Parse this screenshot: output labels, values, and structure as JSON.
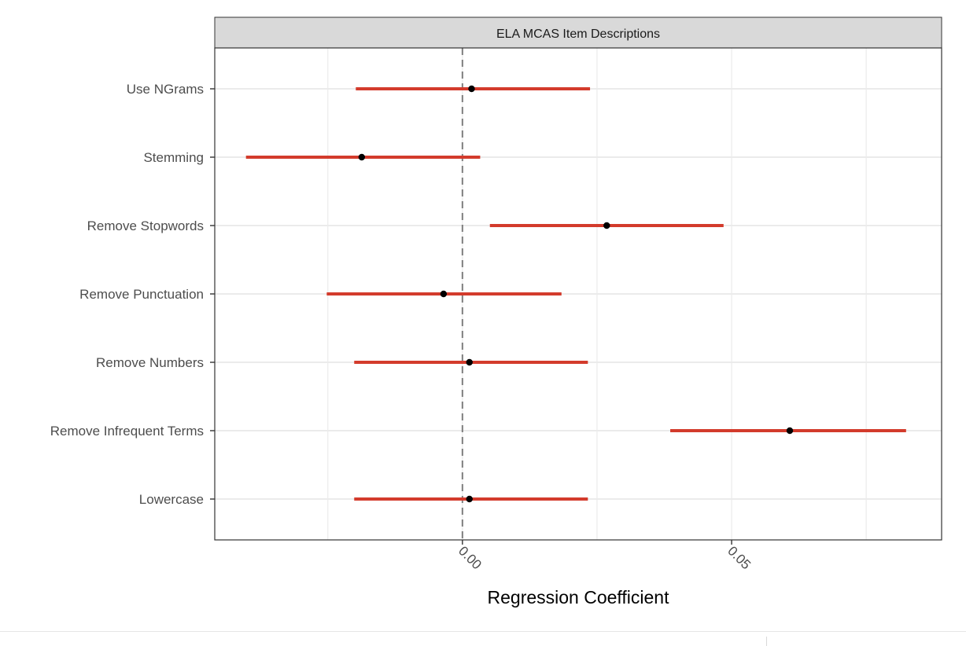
{
  "chart_data": {
    "type": "forest",
    "panel_title": "ELA MCAS Item Descriptions",
    "xlabel": "Regression Coefficient",
    "ylabel": "",
    "xlim": [
      -0.046,
      0.089
    ],
    "x_ticks": [
      {
        "value": 0.0,
        "label": "0.00"
      },
      {
        "value": 0.05,
        "label": "0.05"
      }
    ],
    "reference_line": 0.0,
    "grid": true,
    "colors": {
      "interval": "#d33b2c",
      "point": "#000000",
      "strip": "#d9d9d9",
      "grid": "#ebebeb",
      "reference": "#7f7f7f"
    },
    "rows": [
      {
        "label": "Use NGrams",
        "estimate": 0.0017,
        "lower": -0.0198,
        "upper": 0.0237
      },
      {
        "label": "Stemming",
        "estimate": -0.0187,
        "lower": -0.0402,
        "upper": 0.0033
      },
      {
        "label": "Remove Stopwords",
        "estimate": 0.0268,
        "lower": 0.0051,
        "upper": 0.0485
      },
      {
        "label": "Remove Punctuation",
        "estimate": -0.0035,
        "lower": -0.0252,
        "upper": 0.0184
      },
      {
        "label": "Remove Numbers",
        "estimate": 0.0013,
        "lower": -0.0201,
        "upper": 0.0233
      },
      {
        "label": "Remove Infrequent Terms",
        "estimate": 0.0608,
        "lower": 0.0386,
        "upper": 0.0824
      },
      {
        "label": "Lowercase",
        "estimate": 0.0013,
        "lower": -0.0201,
        "upper": 0.0233
      }
    ]
  }
}
